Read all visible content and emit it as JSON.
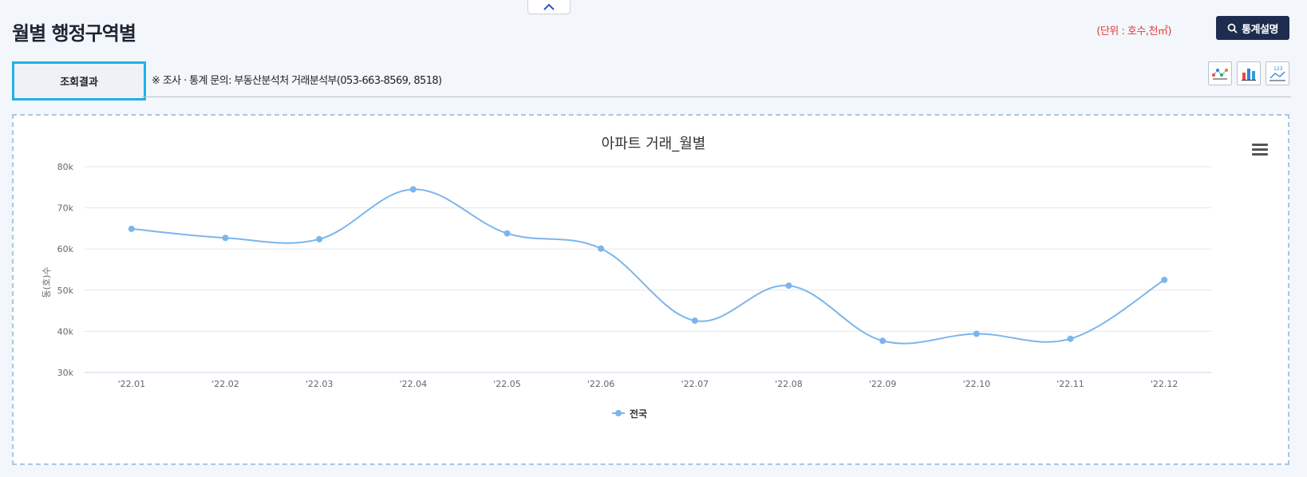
{
  "page": {
    "title": "월별 행정구역별",
    "unit": "(단위 : 호수,천㎡)",
    "stats_button": "통계설명",
    "result_tab": "조회결과",
    "inquiry": "※ 조사 · 통계 문의: 부동산분석처 거래분석부(053-663-8569, 8518)"
  },
  "toolbar": {
    "icons": [
      "scatter-chart-icon",
      "bar-chart-icon",
      "line-values-icon"
    ]
  },
  "chart_data": {
    "type": "line",
    "title": "아파트 거래_월별",
    "ylabel": "동(호)수",
    "xlabel": "",
    "categories": [
      "'22.01",
      "'22.02",
      "'22.03",
      "'22.04",
      "'22.05",
      "'22.06",
      "'22.07",
      "'22.08",
      "'22.09",
      "'22.10",
      "'22.11",
      "'22.12"
    ],
    "series": [
      {
        "name": "전국",
        "color": "#7cb5ec",
        "values": [
          64900,
          62700,
          62400,
          74500,
          63800,
          60100,
          42600,
          51100,
          37700,
          39400,
          38200,
          52500
        ]
      }
    ],
    "ylim": [
      30000,
      80000
    ],
    "yticks": [
      "30k",
      "40k",
      "50k",
      "60k",
      "70k",
      "80k"
    ],
    "ytick_values": [
      30000,
      40000,
      50000,
      60000,
      70000,
      80000
    ],
    "grid": true,
    "legend": "bottom-center"
  }
}
